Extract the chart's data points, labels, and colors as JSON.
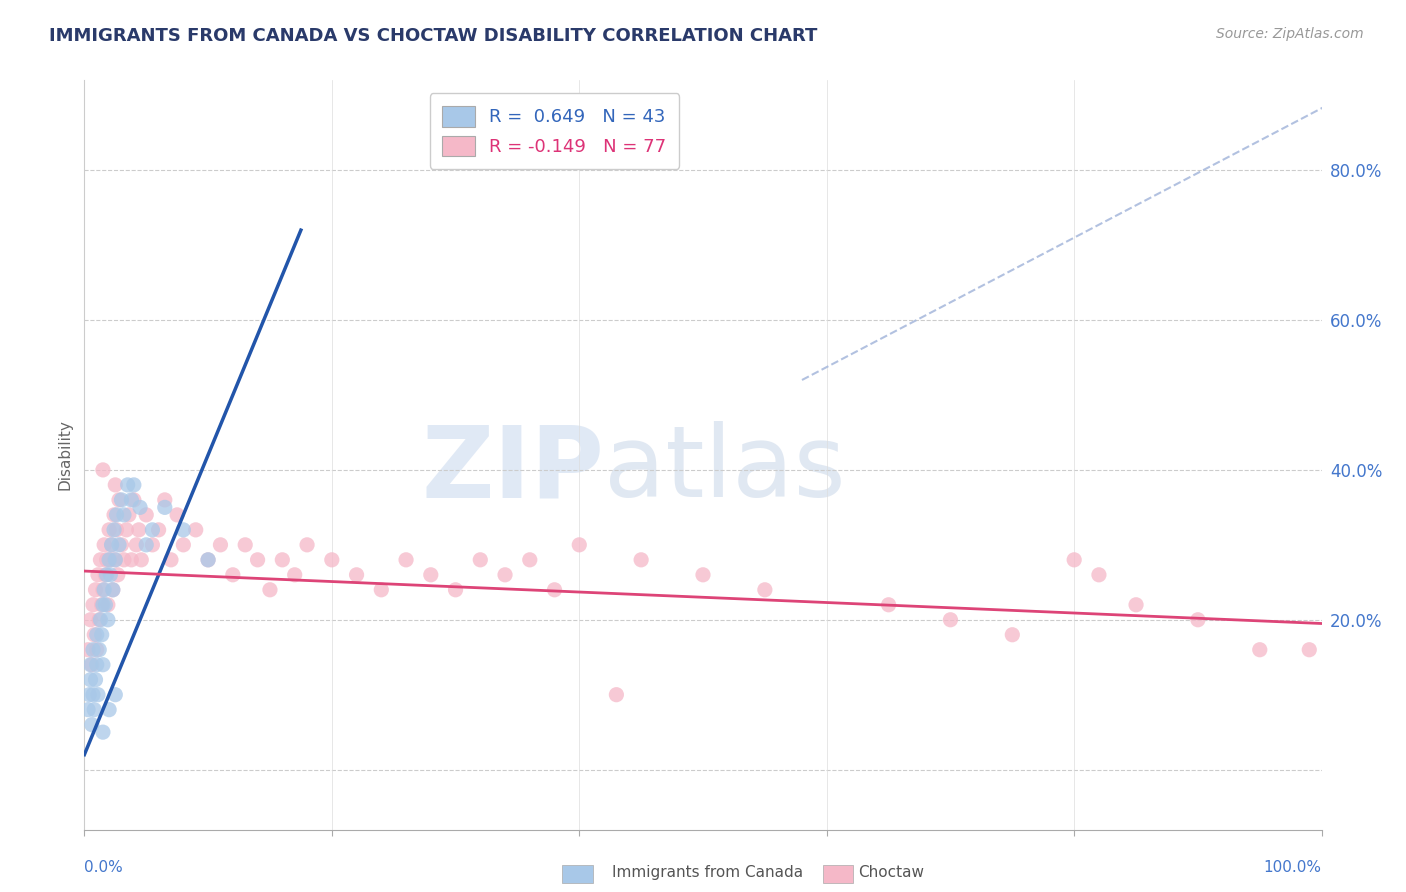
{
  "title": "IMMIGRANTS FROM CANADA VS CHOCTAW DISABILITY CORRELATION CHART",
  "source": "Source: ZipAtlas.com",
  "ylabel": "Disability",
  "y_ticks": [
    0.0,
    0.2,
    0.4,
    0.6,
    0.8
  ],
  "y_tick_labels_right": [
    "",
    "20.0%",
    "40.0%",
    "60.0%",
    "80.0%"
  ],
  "x_range": [
    0.0,
    1.0
  ],
  "y_range": [
    -0.08,
    0.92
  ],
  "legend_r1": "R =  0.649   N = 43",
  "legend_r2": "R = -0.149   N = 77",
  "color_blue": "#a8c8e8",
  "color_pink": "#f5b8c8",
  "line_blue": "#2255aa",
  "line_pink": "#dd4477",
  "line_dashed_color": "#aabbdd",
  "blue_line_x0": 0.0,
  "blue_line_y0": 0.02,
  "blue_line_x1": 0.175,
  "blue_line_y1": 0.72,
  "pink_line_x0": 0.0,
  "pink_line_y0": 0.265,
  "pink_line_x1": 1.0,
  "pink_line_y1": 0.195,
  "diag_line_x0": 0.58,
  "diag_line_y0": 0.52,
  "diag_line_x1": 1.02,
  "diag_line_y1": 0.9,
  "blue_points": [
    [
      0.003,
      0.08
    ],
    [
      0.004,
      0.1
    ],
    [
      0.005,
      0.12
    ],
    [
      0.005,
      0.14
    ],
    [
      0.006,
      0.06
    ],
    [
      0.007,
      0.1
    ],
    [
      0.007,
      0.16
    ],
    [
      0.008,
      0.08
    ],
    [
      0.009,
      0.12
    ],
    [
      0.01,
      0.14
    ],
    [
      0.01,
      0.18
    ],
    [
      0.011,
      0.1
    ],
    [
      0.012,
      0.16
    ],
    [
      0.013,
      0.2
    ],
    [
      0.014,
      0.18
    ],
    [
      0.015,
      0.22
    ],
    [
      0.015,
      0.14
    ],
    [
      0.016,
      0.24
    ],
    [
      0.017,
      0.22
    ],
    [
      0.018,
      0.26
    ],
    [
      0.019,
      0.2
    ],
    [
      0.02,
      0.28
    ],
    [
      0.021,
      0.26
    ],
    [
      0.022,
      0.3
    ],
    [
      0.023,
      0.24
    ],
    [
      0.024,
      0.32
    ],
    [
      0.025,
      0.28
    ],
    [
      0.026,
      0.34
    ],
    [
      0.028,
      0.3
    ],
    [
      0.03,
      0.36
    ],
    [
      0.032,
      0.34
    ],
    [
      0.035,
      0.38
    ],
    [
      0.038,
      0.36
    ],
    [
      0.04,
      0.38
    ],
    [
      0.045,
      0.35
    ],
    [
      0.05,
      0.3
    ],
    [
      0.055,
      0.32
    ],
    [
      0.065,
      0.35
    ],
    [
      0.08,
      0.32
    ],
    [
      0.1,
      0.28
    ],
    [
      0.015,
      0.05
    ],
    [
      0.02,
      0.08
    ],
    [
      0.025,
      0.1
    ]
  ],
  "pink_points": [
    [
      0.003,
      0.16
    ],
    [
      0.005,
      0.2
    ],
    [
      0.006,
      0.14
    ],
    [
      0.007,
      0.22
    ],
    [
      0.008,
      0.18
    ],
    [
      0.009,
      0.24
    ],
    [
      0.01,
      0.16
    ],
    [
      0.011,
      0.26
    ],
    [
      0.012,
      0.2
    ],
    [
      0.013,
      0.28
    ],
    [
      0.014,
      0.22
    ],
    [
      0.015,
      0.24
    ],
    [
      0.016,
      0.3
    ],
    [
      0.017,
      0.26
    ],
    [
      0.018,
      0.28
    ],
    [
      0.019,
      0.22
    ],
    [
      0.02,
      0.32
    ],
    [
      0.021,
      0.28
    ],
    [
      0.022,
      0.3
    ],
    [
      0.023,
      0.24
    ],
    [
      0.024,
      0.34
    ],
    [
      0.025,
      0.28
    ],
    [
      0.026,
      0.32
    ],
    [
      0.027,
      0.26
    ],
    [
      0.028,
      0.36
    ],
    [
      0.03,
      0.3
    ],
    [
      0.032,
      0.28
    ],
    [
      0.034,
      0.32
    ],
    [
      0.036,
      0.34
    ],
    [
      0.038,
      0.28
    ],
    [
      0.04,
      0.36
    ],
    [
      0.042,
      0.3
    ],
    [
      0.044,
      0.32
    ],
    [
      0.046,
      0.28
    ],
    [
      0.05,
      0.34
    ],
    [
      0.055,
      0.3
    ],
    [
      0.06,
      0.32
    ],
    [
      0.065,
      0.36
    ],
    [
      0.07,
      0.28
    ],
    [
      0.075,
      0.34
    ],
    [
      0.08,
      0.3
    ],
    [
      0.09,
      0.32
    ],
    [
      0.1,
      0.28
    ],
    [
      0.11,
      0.3
    ],
    [
      0.12,
      0.26
    ],
    [
      0.13,
      0.3
    ],
    [
      0.14,
      0.28
    ],
    [
      0.15,
      0.24
    ],
    [
      0.16,
      0.28
    ],
    [
      0.17,
      0.26
    ],
    [
      0.18,
      0.3
    ],
    [
      0.2,
      0.28
    ],
    [
      0.22,
      0.26
    ],
    [
      0.24,
      0.24
    ],
    [
      0.26,
      0.28
    ],
    [
      0.28,
      0.26
    ],
    [
      0.3,
      0.24
    ],
    [
      0.32,
      0.28
    ],
    [
      0.34,
      0.26
    ],
    [
      0.36,
      0.28
    ],
    [
      0.38,
      0.24
    ],
    [
      0.4,
      0.3
    ],
    [
      0.43,
      0.1
    ],
    [
      0.45,
      0.28
    ],
    [
      0.5,
      0.26
    ],
    [
      0.55,
      0.24
    ],
    [
      0.65,
      0.22
    ],
    [
      0.7,
      0.2
    ],
    [
      0.75,
      0.18
    ],
    [
      0.8,
      0.28
    ],
    [
      0.82,
      0.26
    ],
    [
      0.85,
      0.22
    ],
    [
      0.9,
      0.2
    ],
    [
      0.95,
      0.16
    ],
    [
      0.99,
      0.16
    ],
    [
      0.015,
      0.4
    ],
    [
      0.025,
      0.38
    ]
  ]
}
